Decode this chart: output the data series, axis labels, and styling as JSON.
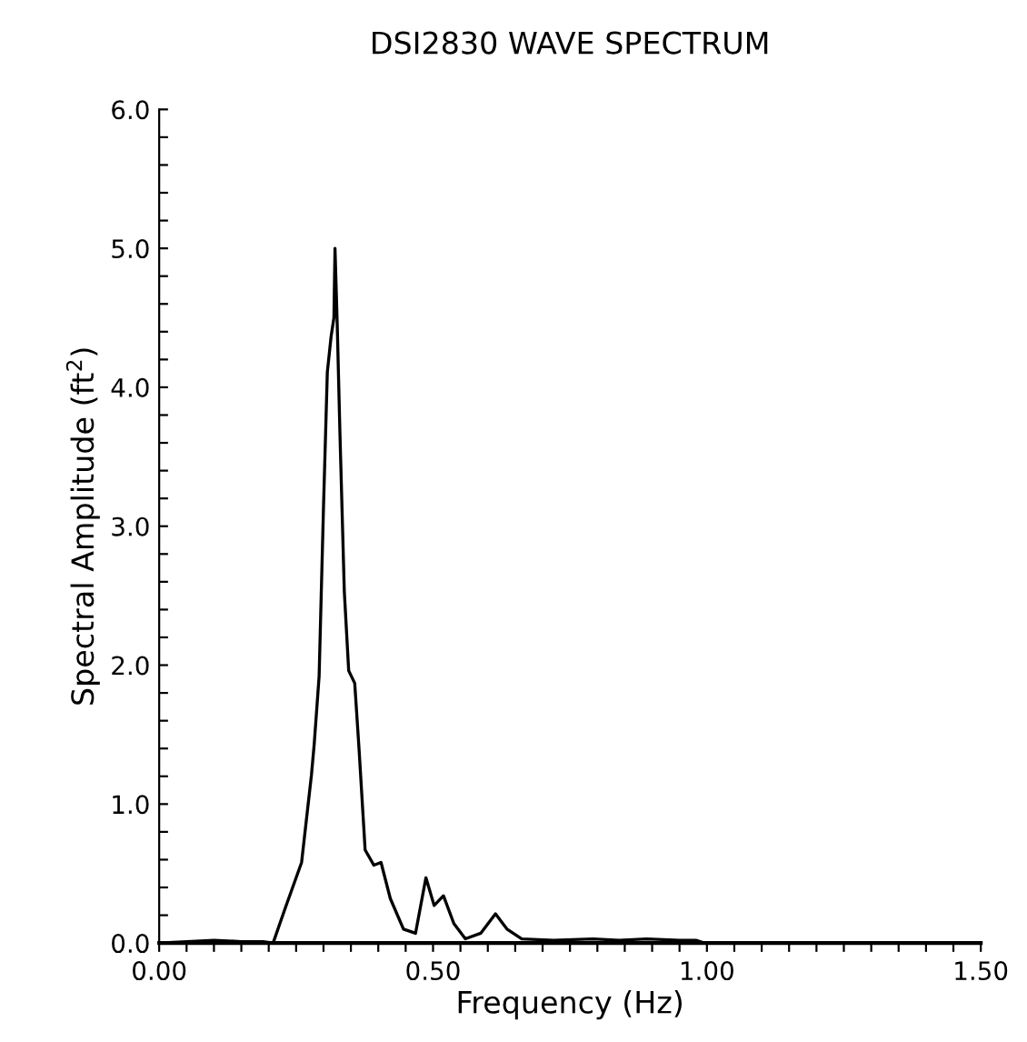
{
  "chart_data": {
    "type": "line",
    "title": "DSI2830 WAVE SPECTRUM",
    "xlabel": "Frequency (Hz)",
    "ylabel": "Spectral Amplitude (ft$^{2}$)",
    "x": [
      0.0,
      0.05,
      0.1,
      0.15,
      0.19,
      0.208,
      0.23,
      0.26,
      0.278,
      0.283,
      0.292,
      0.3,
      0.307,
      0.314,
      0.319,
      0.321,
      0.325,
      0.33,
      0.338,
      0.346,
      0.357,
      0.365,
      0.376,
      0.392,
      0.405,
      0.422,
      0.446,
      0.468,
      0.487,
      0.502,
      0.519,
      0.538,
      0.559,
      0.587,
      0.614,
      0.635,
      0.662,
      0.72,
      0.792,
      0.84,
      0.89,
      0.95,
      0.98,
      0.995,
      1.2,
      1.5
    ],
    "series": [
      {
        "color": "#000000",
        "values": [
          0.0,
          0.01,
          0.02,
          0.01,
          0.01,
          0.0,
          0.25,
          0.58,
          1.21,
          1.43,
          1.92,
          3.14,
          4.11,
          4.37,
          4.5,
          5.0,
          4.46,
          3.67,
          2.53,
          1.96,
          1.87,
          1.39,
          0.67,
          0.56,
          0.58,
          0.32,
          0.1,
          0.07,
          0.47,
          0.27,
          0.34,
          0.14,
          0.03,
          0.07,
          0.21,
          0.1,
          0.03,
          0.02,
          0.03,
          0.02,
          0.03,
          0.02,
          0.02,
          0.0,
          0.0,
          0.0
        ]
      }
    ],
    "xlim": [
      0.0,
      1.5
    ],
    "ylim": [
      0.0,
      6.0
    ],
    "xticks": [
      {
        "value": 0.0,
        "label": "0.00"
      },
      {
        "value": 0.05,
        "label": null
      },
      {
        "value": 0.1,
        "label": null
      },
      {
        "value": 0.15,
        "label": null
      },
      {
        "value": 0.2,
        "label": null
      },
      {
        "value": 0.25,
        "label": null
      },
      {
        "value": 0.3,
        "label": null
      },
      {
        "value": 0.35,
        "label": null
      },
      {
        "value": 0.4,
        "label": null
      },
      {
        "value": 0.45,
        "label": null
      },
      {
        "value": 0.5,
        "label": "0.50"
      },
      {
        "value": 0.55,
        "label": null
      },
      {
        "value": 0.6,
        "label": null
      },
      {
        "value": 0.65,
        "label": null
      },
      {
        "value": 0.7,
        "label": null
      },
      {
        "value": 0.75,
        "label": null
      },
      {
        "value": 0.8,
        "label": null
      },
      {
        "value": 0.85,
        "label": null
      },
      {
        "value": 0.9,
        "label": null
      },
      {
        "value": 0.95,
        "label": null
      },
      {
        "value": 1.0,
        "label": "1.00"
      },
      {
        "value": 1.05,
        "label": null
      },
      {
        "value": 1.1,
        "label": null
      },
      {
        "value": 1.15,
        "label": null
      },
      {
        "value": 1.2,
        "label": null
      },
      {
        "value": 1.25,
        "label": null
      },
      {
        "value": 1.3,
        "label": null
      },
      {
        "value": 1.35,
        "label": null
      },
      {
        "value": 1.4,
        "label": null
      },
      {
        "value": 1.45,
        "label": null
      },
      {
        "value": 1.5,
        "label": "1.50"
      }
    ],
    "yticks": [
      {
        "value": 0.0,
        "label": "0.0"
      },
      {
        "value": 0.2,
        "label": null
      },
      {
        "value": 0.4,
        "label": null
      },
      {
        "value": 0.6,
        "label": null
      },
      {
        "value": 0.8,
        "label": null
      },
      {
        "value": 1.0,
        "label": "1.0"
      },
      {
        "value": 1.2,
        "label": null
      },
      {
        "value": 1.4,
        "label": null
      },
      {
        "value": 1.6,
        "label": null
      },
      {
        "value": 1.8,
        "label": null
      },
      {
        "value": 2.0,
        "label": "2.0"
      },
      {
        "value": 2.2,
        "label": null
      },
      {
        "value": 2.4,
        "label": null
      },
      {
        "value": 2.6,
        "label": null
      },
      {
        "value": 2.8,
        "label": null
      },
      {
        "value": 3.0,
        "label": "3.0"
      },
      {
        "value": 3.2,
        "label": null
      },
      {
        "value": 3.4,
        "label": null
      },
      {
        "value": 3.6,
        "label": null
      },
      {
        "value": 3.8,
        "label": null
      },
      {
        "value": 4.0,
        "label": "4.0"
      },
      {
        "value": 4.2,
        "label": null
      },
      {
        "value": 4.4,
        "label": null
      },
      {
        "value": 4.6,
        "label": null
      },
      {
        "value": 4.8,
        "label": null
      },
      {
        "value": 5.0,
        "label": "5.0"
      },
      {
        "value": 5.2,
        "label": null
      },
      {
        "value": 5.4,
        "label": null
      },
      {
        "value": 5.6,
        "label": null
      },
      {
        "value": 5.8,
        "label": null
      },
      {
        "value": 6.0,
        "label": "6.0"
      }
    ],
    "grid": false,
    "marker": "none",
    "line_style": "solid"
  }
}
